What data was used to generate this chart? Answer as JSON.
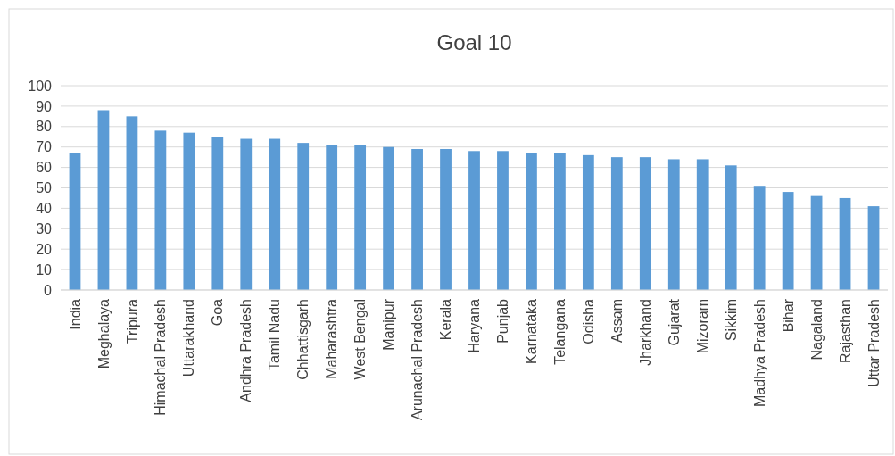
{
  "chart_data": {
    "type": "bar",
    "title": "Goal 10",
    "categories": [
      "India",
      "Meghalaya",
      "Tripura",
      "Himachal Pradesh",
      "Uttarakhand",
      "Goa",
      "Andhra Pradesh",
      "Tamil Nadu",
      "Chhattisgarh",
      "Maharashtra",
      "West Bengal",
      "Manipur",
      "Arunachal Pradesh",
      "Kerala",
      "Haryana",
      "Punjab",
      "Karnataka",
      "Telangana",
      "Odisha",
      "Assam",
      "Jharkhand",
      "Gujarat",
      "Mizoram",
      "Sikkim",
      "Madhya Pradesh",
      "Bihar",
      "Nagaland",
      "Rajasthan",
      "Uttar Pradesh"
    ],
    "values": [
      67,
      88,
      85,
      78,
      77,
      75,
      74,
      74,
      72,
      71,
      71,
      70,
      69,
      69,
      68,
      68,
      67,
      67,
      66,
      65,
      65,
      64,
      64,
      61,
      51,
      48,
      46,
      45,
      41
    ],
    "color": "#5b9bd5",
    "ylim": [
      0,
      100
    ],
    "yticks": [
      0,
      10,
      20,
      30,
      40,
      50,
      60,
      70,
      80,
      90,
      100
    ],
    "grid": "y"
  }
}
